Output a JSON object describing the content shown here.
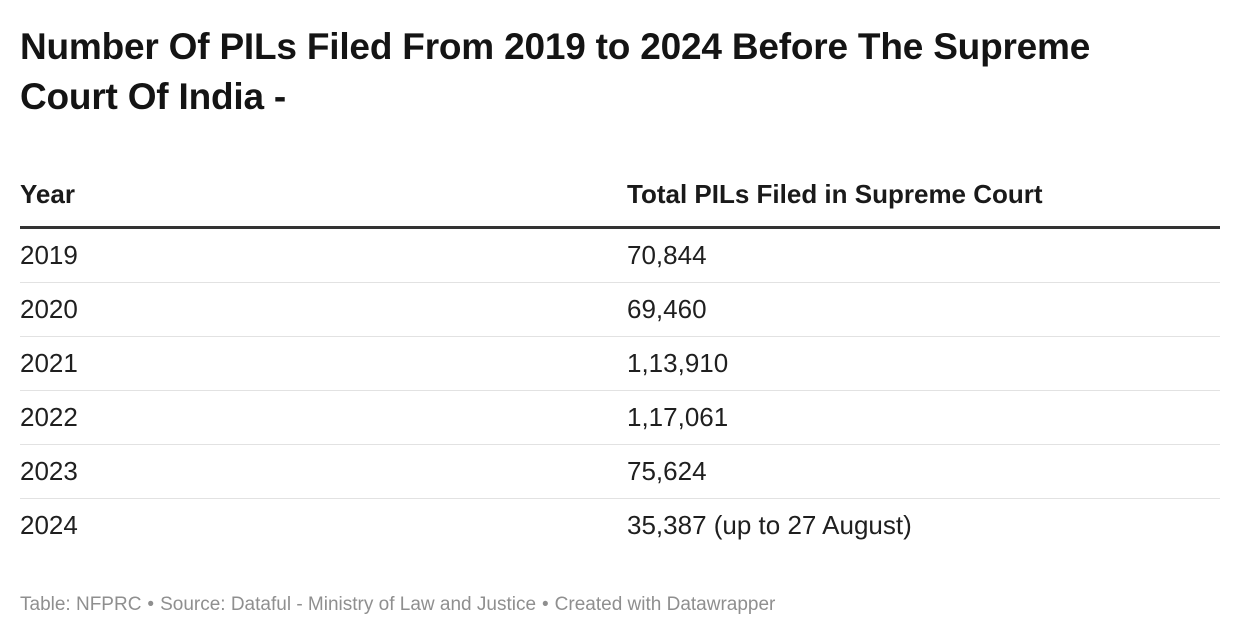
{
  "chart_data": {
    "type": "table",
    "title": "Number Of PILs Filed From 2019 to 2024 Before The Supreme Court Of India -",
    "columns": [
      "Year",
      "Total PILs Filed in Supreme Court"
    ],
    "rows": [
      [
        "2019",
        "70,844"
      ],
      [
        "2020",
        "69,460"
      ],
      [
        "2021",
        "1,13,910"
      ],
      [
        "2022",
        "1,17,061"
      ],
      [
        "2023",
        "75,624"
      ],
      [
        "2024",
        "35,387 (up to 27 August)"
      ]
    ],
    "values": [
      70844,
      69460,
      113910,
      117061,
      75624,
      35387
    ]
  },
  "footer": {
    "table_credit": "Table: NFPRC",
    "source": "Source: Dataful - Ministry of Law and Justice",
    "created_with": "Created with Datawrapper",
    "separator": "•"
  }
}
